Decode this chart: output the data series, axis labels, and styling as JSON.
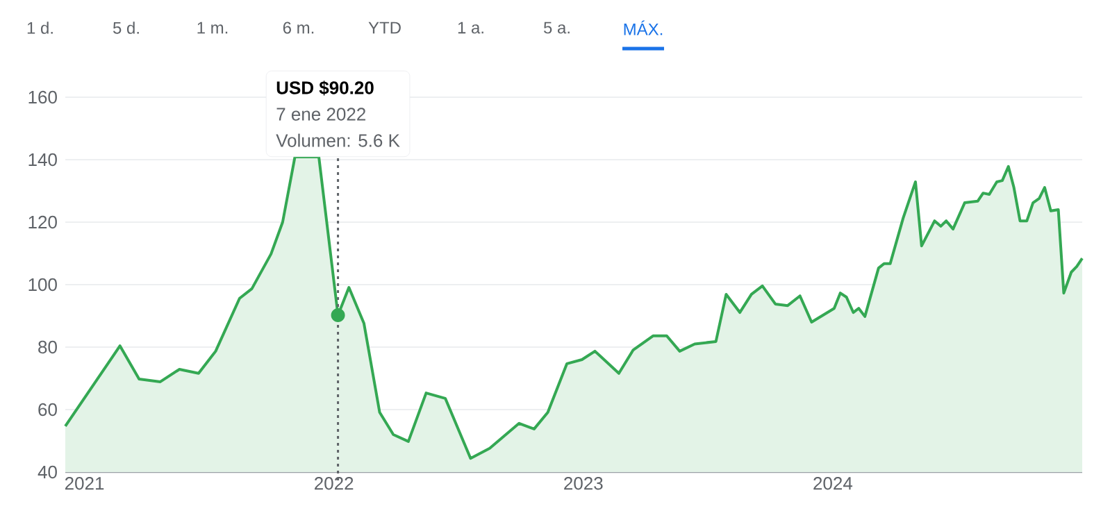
{
  "chart_data": {
    "type": "area",
    "x": [
      "2020-12-04",
      "2021-02-22",
      "2021-03-22",
      "2021-04-22",
      "2021-05-20",
      "2021-06-17",
      "2021-07-12",
      "2021-08-16",
      "2021-09-03",
      "2021-10-01",
      "2021-10-18",
      "2021-11-05",
      "2021-11-19",
      "2021-12-10",
      "2022-01-07",
      "2022-01-23",
      "2022-02-14",
      "2022-03-09",
      "2022-03-29",
      "2022-04-20",
      "2022-05-16",
      "2022-06-13",
      "2022-07-20",
      "2022-08-17",
      "2022-09-29",
      "2022-10-21",
      "2022-11-10",
      "2022-12-08",
      "2022-12-30",
      "2023-01-18",
      "2023-02-22",
      "2023-03-15",
      "2023-04-13",
      "2023-05-03",
      "2023-05-22",
      "2023-06-13",
      "2023-07-14",
      "2023-07-29",
      "2023-08-18",
      "2023-09-04",
      "2023-09-20",
      "2023-10-09",
      "2023-10-27",
      "2023-11-14",
      "2023-12-01",
      "2024-01-03",
      "2024-01-12",
      "2024-01-21",
      "2024-01-31",
      "2024-02-08",
      "2024-02-17",
      "2024-03-08",
      "2024-03-16",
      "2024-03-25",
      "2024-04-13",
      "2024-05-01",
      "2024-05-10",
      "2024-05-29",
      "2024-06-07",
      "2024-06-15",
      "2024-06-25",
      "2024-07-12",
      "2024-07-31",
      "2024-08-08",
      "2024-08-17",
      "2024-08-28",
      "2024-09-05",
      "2024-09-14",
      "2024-09-22",
      "2024-10-01",
      "2024-10-11",
      "2024-10-20",
      "2024-10-29",
      "2024-11-06",
      "2024-11-15",
      "2024-11-26",
      "2024-12-04",
      "2024-12-15",
      "2024-12-23",
      "2024-12-31"
    ],
    "series": [
      {
        "color": "#34a853",
        "values": [
          54.7,
          80.4,
          69.8,
          68.9,
          72.9,
          71.6,
          78.7,
          95.6,
          98.7,
          109.8,
          120,
          140.9,
          null,
          140.9,
          90.2,
          99.1,
          87.6,
          59.1,
          52,
          49.8,
          65.3,
          63.6,
          44.4,
          47.6,
          55.6,
          53.8,
          59.1,
          74.7,
          76,
          78.7,
          71.6,
          79.1,
          83.6,
          83.6,
          78.7,
          81,
          81.8,
          96.9,
          91.1,
          96.9,
          99.6,
          93.8,
          93.3,
          96.4,
          88,
          92.4,
          97.3,
          96,
          91.1,
          92.4,
          89.8,
          105.3,
          106.7,
          106.7,
          121.3,
          132.9,
          112.4,
          120.4,
          118.7,
          120.4,
          117.8,
          126.2,
          126.7,
          129.3,
          128.9,
          132.9,
          133.3,
          137.8,
          131.1,
          120.4,
          120.4,
          126.2,
          127.6,
          131.1,
          123.6,
          124,
          97.3,
          104,
          105.8,
          108.4
        ]
      }
    ],
    "xlim": [
      "2020-12-04",
      "2024-12-31"
    ],
    "xticks": [
      "2021",
      "2022",
      "2023",
      "2024"
    ],
    "ylim": [
      40,
      164
    ],
    "yticks": [
      40,
      60,
      80,
      100,
      120,
      140,
      160
    ],
    "grid": "y",
    "ref_lines": [
      {
        "axis": "x",
        "value": "2022-01-07",
        "line_style": "dotted",
        "color": "#5f6368"
      }
    ],
    "annotations": [
      "USD $90.20",
      "7 ene 2022",
      "Volumen: 5.6 K",
      "1 d.",
      "5 d.",
      "1 m.",
      "6 m.",
      "YTD",
      "1 a.",
      "5 a.",
      "MÁX."
    ]
  }
}
